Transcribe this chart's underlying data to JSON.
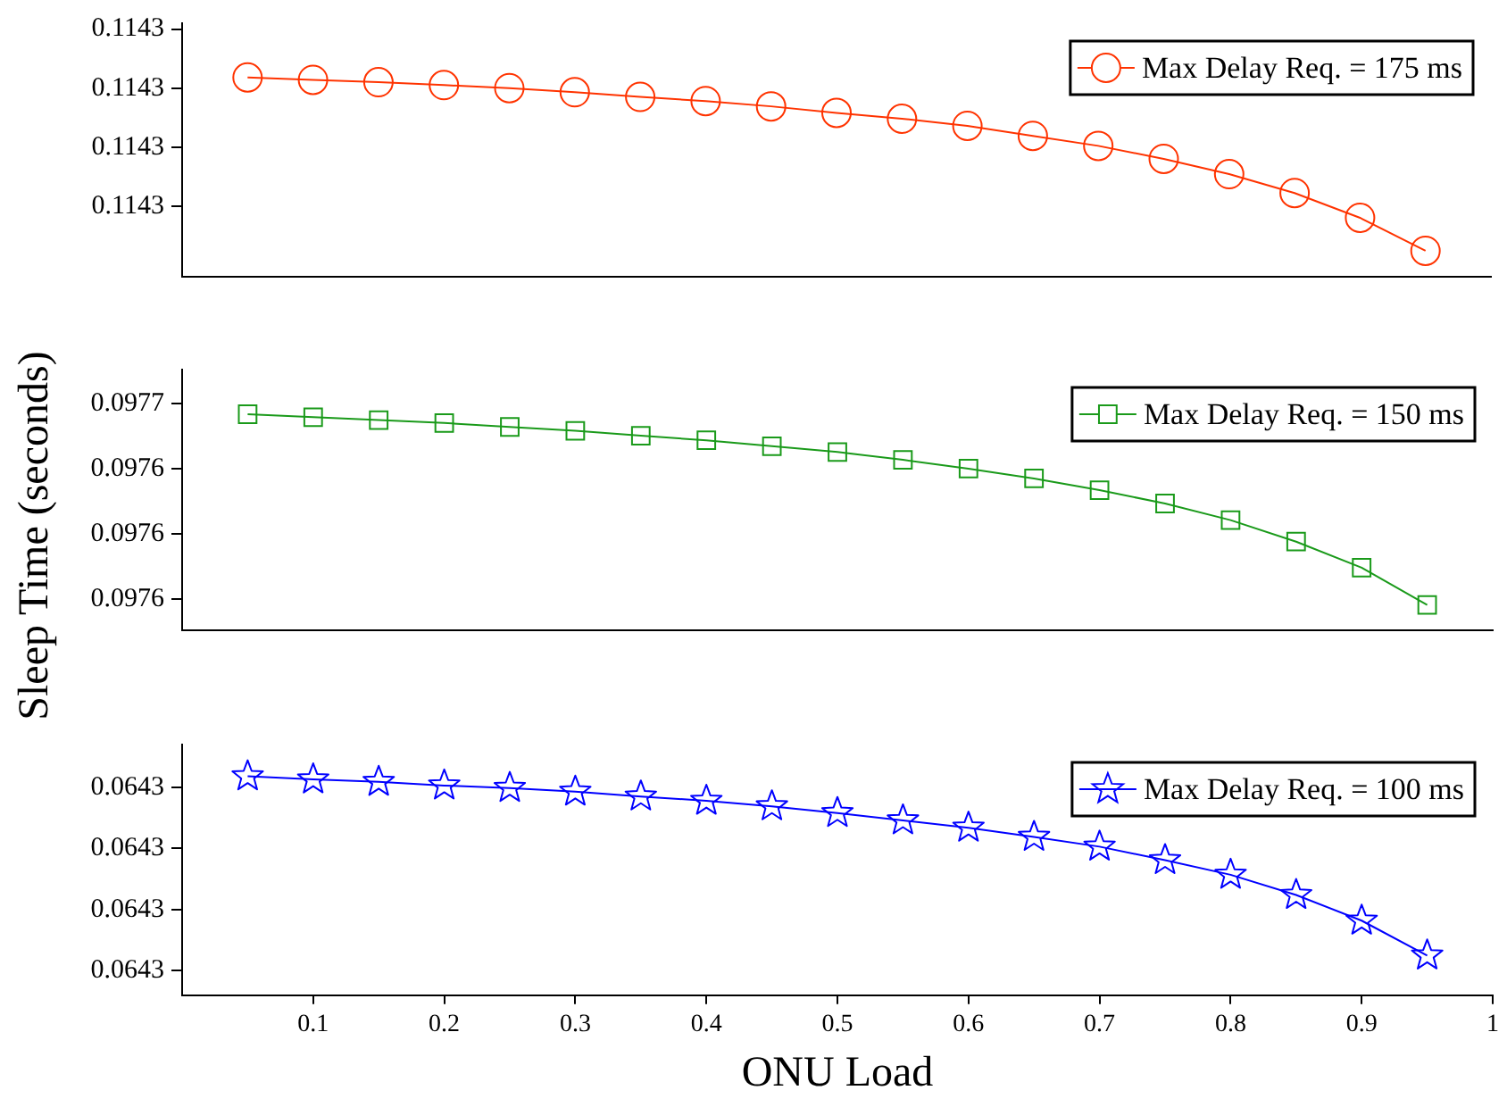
{
  "chart_data": [
    {
      "type": "line",
      "x": [
        0.05,
        0.1,
        0.15,
        0.2,
        0.25,
        0.3,
        0.35,
        0.4,
        0.45,
        0.5,
        0.55,
        0.6,
        0.65,
        0.7,
        0.75,
        0.8,
        0.85,
        0.9,
        0.95
      ],
      "xlim": [
        0,
        1
      ],
      "ylim": [
        0.114268,
        0.114311
      ],
      "yticks": [
        {
          "value": 0.11428,
          "label": "0.1143"
        },
        {
          "value": 0.11429,
          "label": "0.1143"
        },
        {
          "value": 0.1143,
          "label": "0.1143"
        },
        {
          "value": 0.11431,
          "label": "0.1143"
        }
      ],
      "tick_labels": "y",
      "marker": "circle",
      "legend": "top right",
      "series": [
        {
          "name": "Max Delay Req. = 175 ms",
          "color": "#ff3300",
          "values": [
            0.1143018,
            0.1143014,
            0.114301,
            0.1143005,
            0.1143,
            0.1142993,
            0.1142985,
            0.1142978,
            0.1142969,
            0.1142958,
            0.1142948,
            0.1142936,
            0.1142919,
            0.1142902,
            0.114288,
            0.1142854,
            0.1142822,
            0.114278,
            0.1142724
          ]
        }
      ]
    },
    {
      "type": "line",
      "x": [
        0.05,
        0.1,
        0.15,
        0.2,
        0.25,
        0.3,
        0.35,
        0.4,
        0.45,
        0.5,
        0.55,
        0.6,
        0.65,
        0.7,
        0.75,
        0.8,
        0.85,
        0.9,
        0.95
      ],
      "xlim": [
        0,
        1
      ],
      "ylim": [
        0.0975904,
        0.0976704
      ],
      "yticks": [
        {
          "value": 0.0976,
          "label": "0.0976"
        },
        {
          "value": 0.09762,
          "label": "0.0976"
        },
        {
          "value": 0.09764,
          "label": "0.0976"
        },
        {
          "value": 0.09766,
          "label": "0.0977"
        }
      ],
      "tick_labels": "y",
      "marker": "square",
      "legend": "top right",
      "ylabel": "Sleep Time (seconds)",
      "series": [
        {
          "name": "Max Delay Req. = 150 ms",
          "color": "#1a9a1a",
          "values": [
            0.0976567,
            0.0976558,
            0.0976549,
            0.097654,
            0.0976528,
            0.0976516,
            0.0976501,
            0.0976487,
            0.0976469,
            0.0976451,
            0.0976427,
            0.09764,
            0.097637,
            0.0976334,
            0.0976293,
            0.0976242,
            0.0976176,
            0.0976096,
            0.0975982
          ]
        }
      ]
    },
    {
      "type": "line",
      "x": [
        0.05,
        0.1,
        0.15,
        0.2,
        0.25,
        0.3,
        0.35,
        0.4,
        0.45,
        0.5,
        0.55,
        0.6,
        0.65,
        0.7,
        0.75,
        0.8,
        0.85,
        0.9,
        0.95
      ],
      "xlim": [
        0,
        1
      ],
      "xticks": [
        0.1,
        0.2,
        0.3,
        0.4,
        0.5,
        0.6,
        0.7,
        0.8,
        0.9,
        1
      ],
      "xlabel": "ONU Load",
      "ylim": [
        0.0642996,
        0.0643037
      ],
      "yticks": [
        {
          "value": 0.0643,
          "label": "0.0643"
        },
        {
          "value": 0.064301,
          "label": "0.0643"
        },
        {
          "value": 0.064302,
          "label": "0.0643"
        },
        {
          "value": 0.064303,
          "label": "0.0643"
        }
      ],
      "marker": "star",
      "legend": "top right",
      "series": [
        {
          "name": "Max Delay Req. = 100 ms",
          "color": "#0000ff",
          "values": [
            0.06430318,
            0.06430313,
            0.06430309,
            0.06430303,
            0.06430299,
            0.06430293,
            0.06430285,
            0.06430278,
            0.06430269,
            0.06430258,
            0.06430246,
            0.06430234,
            0.06430219,
            0.06430203,
            0.06430181,
            0.06430157,
            0.06430124,
            0.06430082,
            0.06430025
          ]
        }
      ]
    }
  ]
}
